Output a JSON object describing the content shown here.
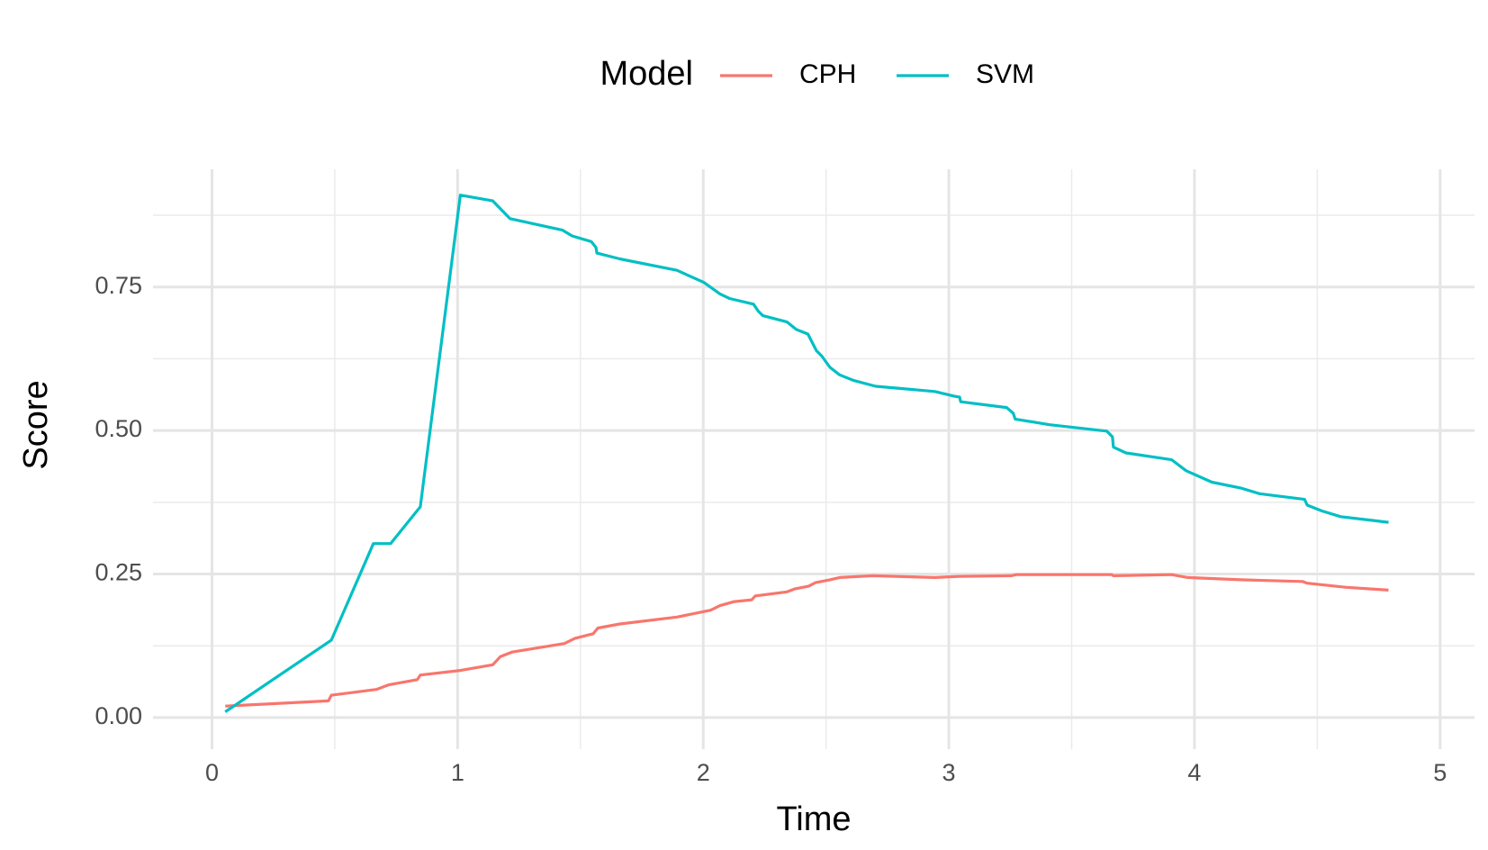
{
  "chart_data": {
    "type": "line",
    "x_label": "Time",
    "y_label": "Score",
    "legend_title": "Model",
    "legend_position": "top",
    "xlim": [
      -0.24,
      5.14
    ],
    "ylim": [
      -0.055,
      0.955
    ],
    "xticks": [
      0,
      1,
      2,
      3,
      4,
      5
    ],
    "yticks": [
      {
        "value": 0,
        "label": "0.00"
      },
      {
        "value": 0.25,
        "label": "0.25"
      },
      {
        "value": 0.5,
        "label": "0.50"
      },
      {
        "value": 0.75,
        "label": "0.75"
      }
    ],
    "xminor_ticks": [
      0.5,
      1.5,
      2.5,
      3.5,
      4.5
    ],
    "yminor_ticks": [
      0.125,
      0.375,
      0.625,
      0.875
    ],
    "grid": true,
    "series": [
      {
        "name": "CPH",
        "color": "#f8766d",
        "x": [
          0.054,
          0.474,
          0.486,
          0.669,
          0.719,
          0.836,
          0.848,
          1.011,
          1.143,
          1.174,
          1.221,
          1.435,
          1.478,
          1.552,
          1.571,
          1.66,
          1.893,
          2.03,
          2.068,
          2.127,
          2.197,
          2.212,
          2.341,
          2.372,
          2.43,
          2.457,
          2.516,
          2.555,
          2.69,
          2.943,
          3.04,
          3.254,
          3.274,
          3.663,
          3.67,
          3.907,
          3.973,
          4.187,
          4.44,
          4.459,
          4.615,
          4.79
        ],
        "values": [
          0.02,
          0.029,
          0.039,
          0.049,
          0.057,
          0.066,
          0.074,
          0.082,
          0.092,
          0.106,
          0.114,
          0.129,
          0.138,
          0.146,
          0.156,
          0.163,
          0.175,
          0.187,
          0.195,
          0.202,
          0.205,
          0.212,
          0.219,
          0.224,
          0.229,
          0.235,
          0.24,
          0.244,
          0.247,
          0.244,
          0.246,
          0.247,
          0.249,
          0.249,
          0.247,
          0.249,
          0.244,
          0.24,
          0.237,
          0.234,
          0.227,
          0.222
        ]
      },
      {
        "name": "SVM",
        "color": "#00bfc4",
        "x": [
          0.054,
          0.486,
          0.657,
          0.727,
          0.848,
          1.011,
          1.143,
          1.213,
          1.427,
          1.466,
          1.544,
          1.563,
          1.567,
          1.66,
          1.893,
          2.002,
          2.068,
          2.107,
          2.205,
          2.224,
          2.243,
          2.341,
          2.379,
          2.426,
          2.449,
          2.461,
          2.484,
          2.516,
          2.555,
          2.613,
          2.702,
          2.943,
          3.021,
          3.044,
          3.048,
          3.235,
          3.262,
          3.27,
          3.41,
          3.643,
          3.666,
          3.67,
          3.721,
          3.907,
          3.966,
          4.071,
          4.187,
          4.265,
          4.448,
          4.459,
          4.518,
          4.595,
          4.79
        ],
        "values": [
          0.01,
          0.135,
          0.303,
          0.303,
          0.367,
          0.91,
          0.9,
          0.869,
          0.849,
          0.839,
          0.829,
          0.819,
          0.809,
          0.799,
          0.779,
          0.758,
          0.738,
          0.73,
          0.72,
          0.708,
          0.7,
          0.689,
          0.676,
          0.668,
          0.649,
          0.639,
          0.629,
          0.61,
          0.597,
          0.587,
          0.577,
          0.568,
          0.56,
          0.558,
          0.55,
          0.54,
          0.53,
          0.52,
          0.51,
          0.499,
          0.489,
          0.471,
          0.461,
          0.449,
          0.43,
          0.41,
          0.4,
          0.39,
          0.38,
          0.37,
          0.36,
          0.35,
          0.34
        ]
      }
    ]
  }
}
